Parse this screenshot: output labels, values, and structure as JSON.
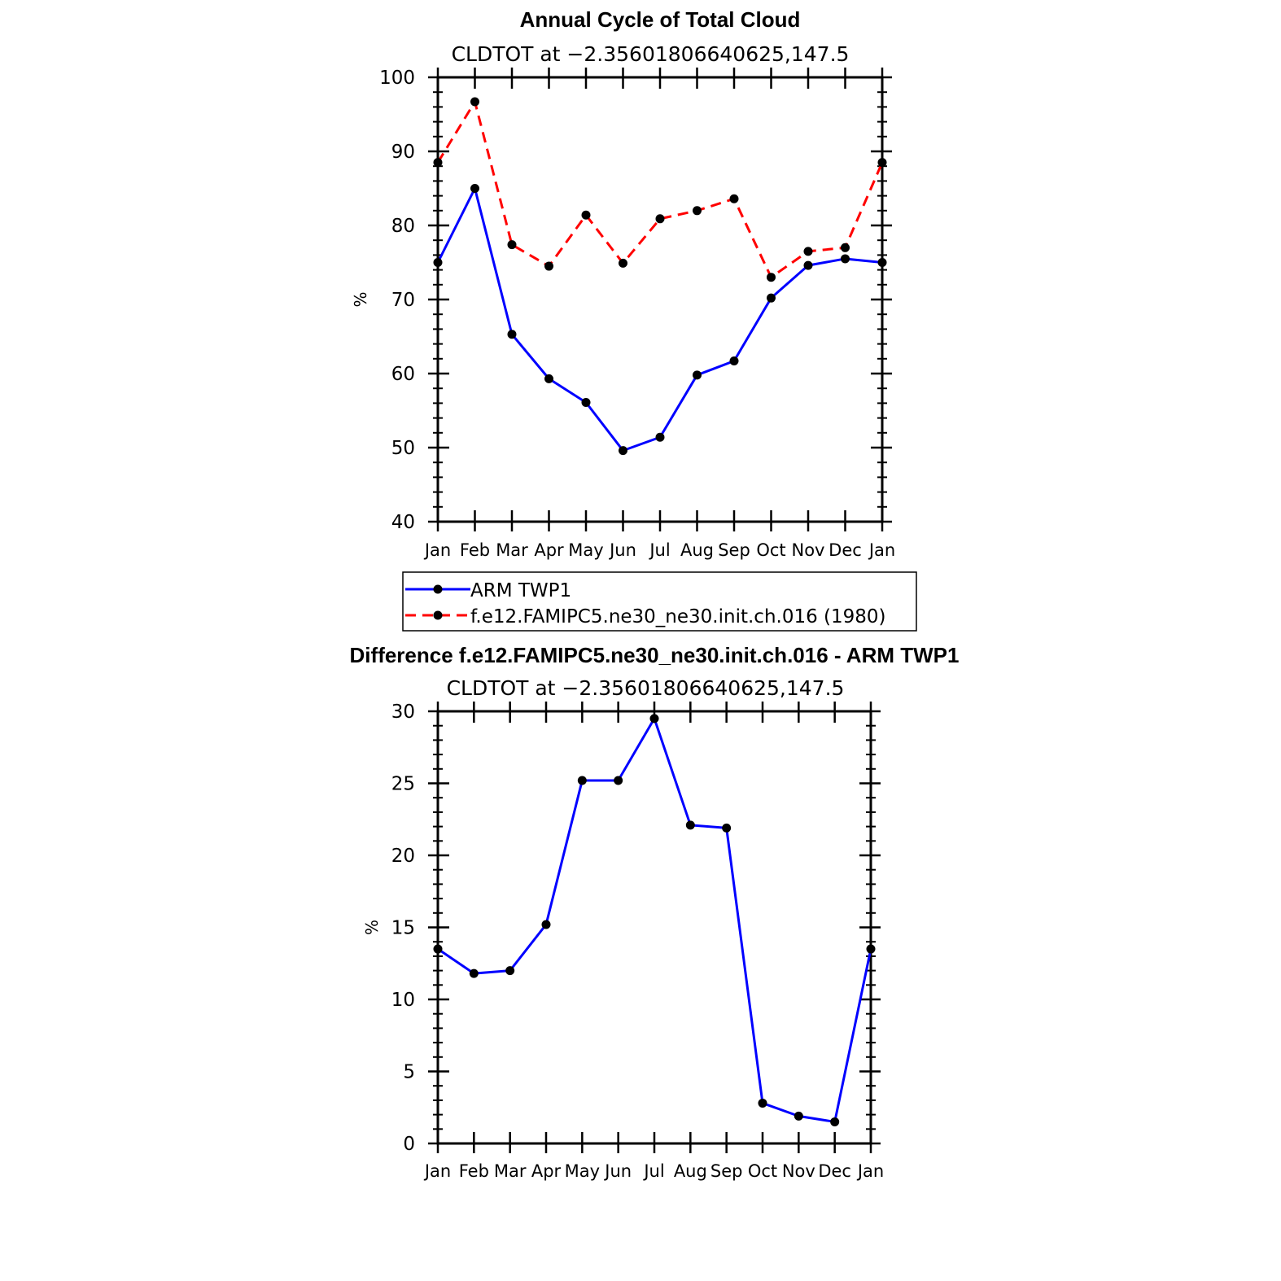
{
  "chart_data": [
    {
      "type": "line",
      "title": "Annual Cycle of Total Cloud",
      "subtitle": "CLDTOT at −2.35601806640625,147.5",
      "ylabel": "%",
      "categories": [
        "Jan",
        "Feb",
        "Mar",
        "Apr",
        "May",
        "Jun",
        "Jul",
        "Aug",
        "Sep",
        "Oct",
        "Nov",
        "Dec",
        "Jan"
      ],
      "ylim": [
        40,
        100
      ],
      "yticks": [
        40,
        50,
        60,
        70,
        80,
        90,
        100
      ],
      "series": [
        {
          "name": "ARM  TWP1",
          "color": "#0000ff",
          "dash": "solid",
          "values": [
            75.0,
            85.0,
            65.3,
            59.3,
            56.1,
            49.6,
            51.4,
            59.8,
            61.7,
            70.2,
            74.6,
            75.5,
            75.0
          ]
        },
        {
          "name": "f.e12.FAMIPC5.ne30_ne30.init.ch.016 (1980)",
          "color": "#ff0000",
          "dash": "dashed",
          "values": [
            88.5,
            96.7,
            77.4,
            74.5,
            81.4,
            74.9,
            80.9,
            82.0,
            83.6,
            73.0,
            76.5,
            77.0,
            88.5
          ]
        }
      ],
      "legend": "below"
    },
    {
      "type": "line",
      "title": "Difference f.e12.FAMIPC5.ne30_ne30.init.ch.016 - ARM TWP1",
      "subtitle": "CLDTOT at −2.35601806640625,147.5",
      "ylabel": "%",
      "categories": [
        "Jan",
        "Feb",
        "Mar",
        "Apr",
        "May",
        "Jun",
        "Jul",
        "Aug",
        "Sep",
        "Oct",
        "Nov",
        "Dec",
        "Jan"
      ],
      "ylim": [
        0,
        30
      ],
      "yticks": [
        0,
        5,
        10,
        15,
        20,
        25,
        30
      ],
      "series": [
        {
          "color": "#0000ff",
          "dash": "solid",
          "values": [
            13.5,
            11.8,
            12.0,
            15.2,
            25.2,
            25.2,
            29.5,
            22.1,
            21.9,
            2.8,
            1.9,
            1.5,
            13.5
          ]
        }
      ]
    }
  ]
}
